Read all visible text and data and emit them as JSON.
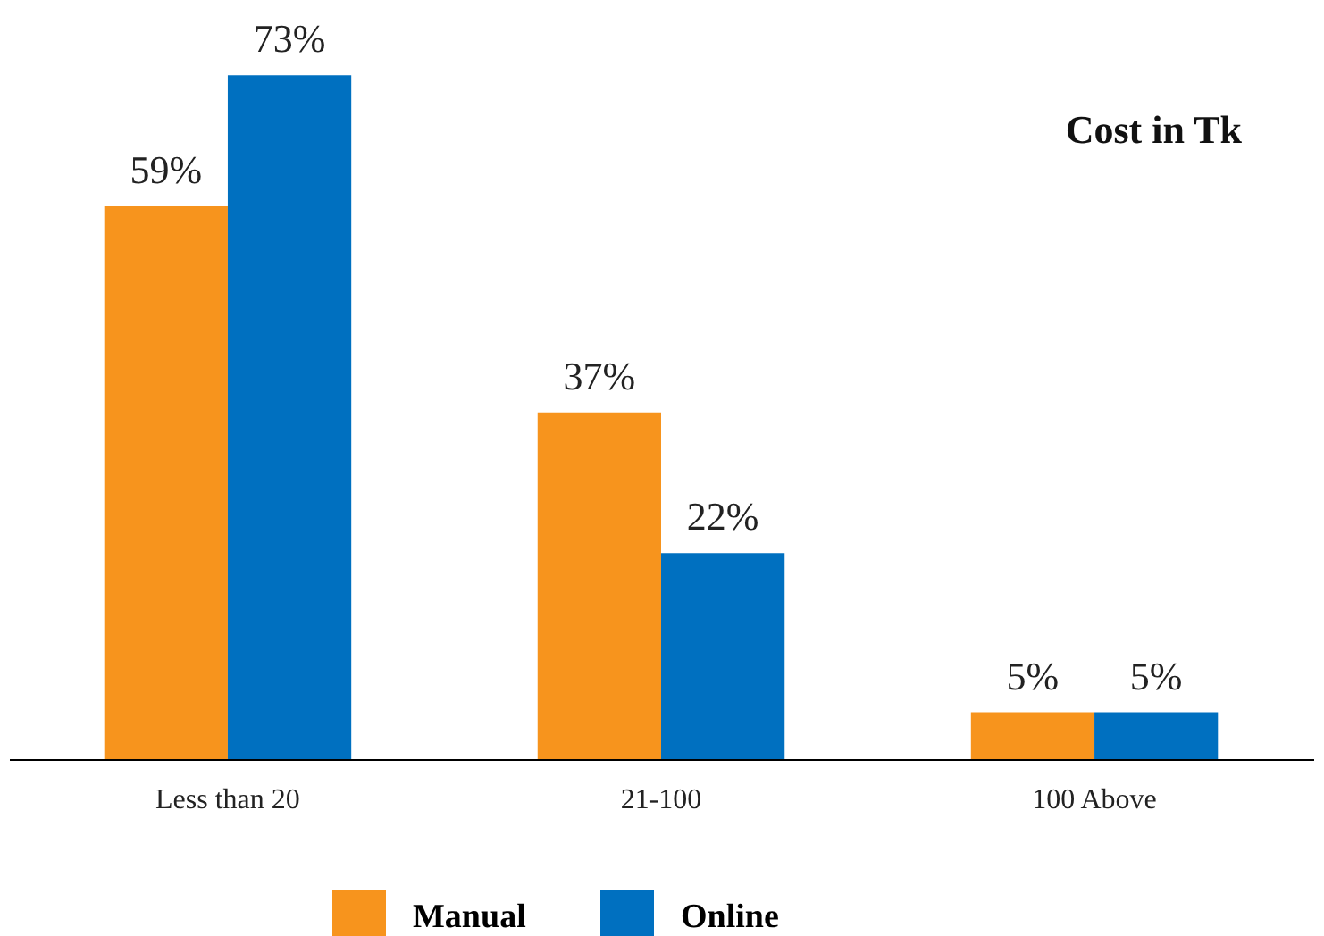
{
  "chart_data": {
    "type": "bar",
    "title": "Cost in Tk",
    "categories": [
      "Less than 20",
      "21-100",
      "100 Above"
    ],
    "series": [
      {
        "name": "Manual",
        "color": "#f7941d",
        "values": [
          59,
          37,
          5
        ],
        "value_labels": [
          "59%",
          "37%",
          "5%"
        ]
      },
      {
        "name": "Online",
        "color": "#0070c0",
        "values": [
          73,
          22,
          5
        ],
        "value_labels": [
          "73%",
          "22%",
          "5%"
        ]
      }
    ],
    "legend": "bottom"
  }
}
